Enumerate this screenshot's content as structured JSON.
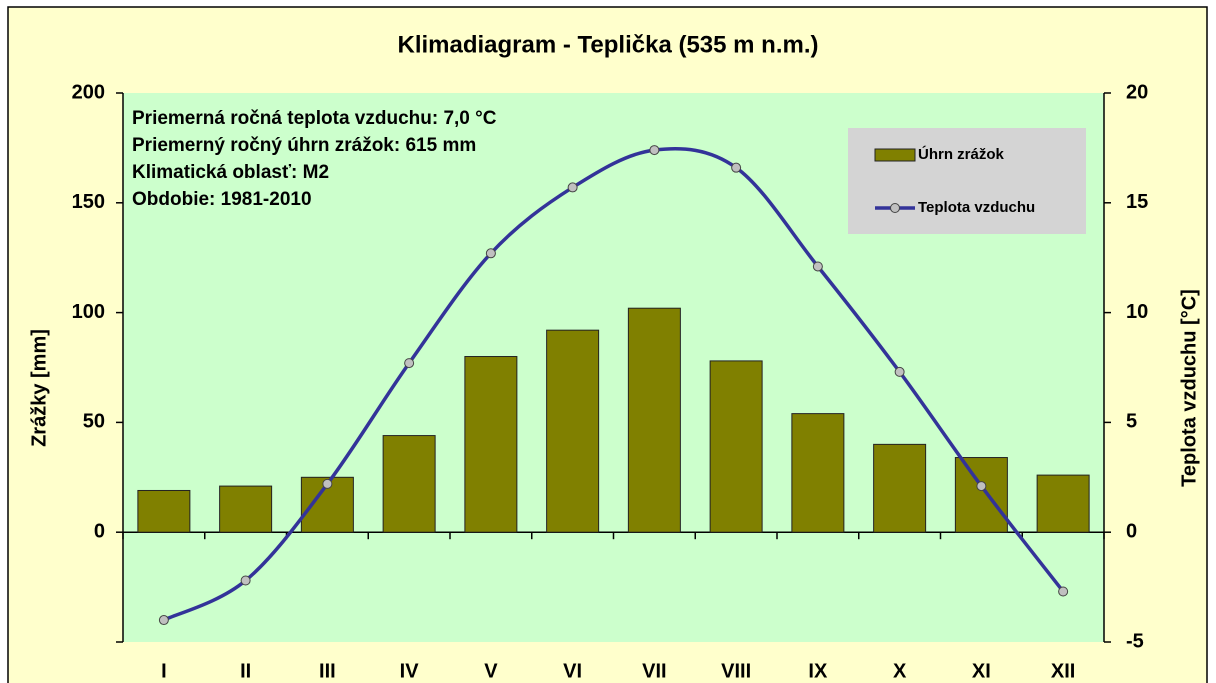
{
  "chart_data": {
    "type": "bar",
    "title": "Klimadiagram - Teplička (535 m n.m.)",
    "annotations": [
      "Priemerná ročná teplota vzduchu: 7,0 °C",
      "Priemerný ročný úhrn zrážok: 615 mm",
      "Klimatická oblasť: M2",
      "Obdobie: 1981-2010"
    ],
    "categories": [
      "I",
      "II",
      "III",
      "IV",
      "V",
      "VI",
      "VII",
      "VIII",
      "IX",
      "X",
      "XI",
      "XII"
    ],
    "series": [
      {
        "name": "Úhrn zrážok",
        "type": "bar",
        "color": "#808000",
        "values": [
          19,
          21,
          25,
          44,
          80,
          92,
          102,
          78,
          54,
          40,
          34,
          26
        ]
      },
      {
        "name": "Teplota vzduchu",
        "type": "line",
        "axis": "y2",
        "color": "#333399",
        "values": [
          -4.0,
          -2.2,
          2.2,
          7.7,
          12.7,
          15.7,
          17.4,
          16.6,
          12.1,
          7.3,
          2.1,
          -2.7
        ]
      }
    ],
    "ylabel": "Zrážky [mm]",
    "y2label": "Teplota vzduchu [°C]",
    "ylim": [
      -50,
      200
    ],
    "yticks": [
      0,
      50,
      100,
      150,
      200
    ],
    "y2lim": [
      -5,
      20
    ],
    "y2ticks": [
      -5,
      0,
      5,
      10,
      15,
      20
    ],
    "legend": "upper right",
    "plot_background": "#ccffcc",
    "background": "#ffffcc"
  }
}
